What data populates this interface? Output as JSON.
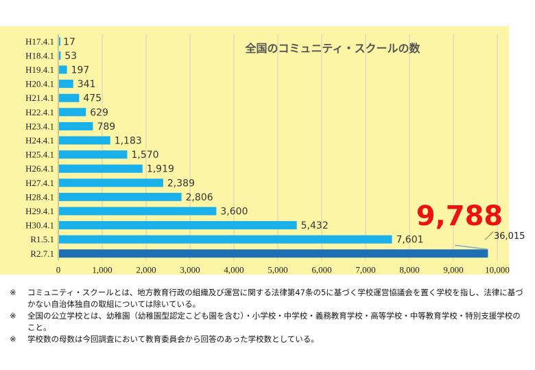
{
  "chart_data": {
    "type": "bar",
    "orientation": "horizontal",
    "title": "全国のコミュニティ・スクールの数",
    "categories": [
      "H17.4.1",
      "H18.4.1",
      "H19.4.1",
      "H20.4.1",
      "H21.4.1",
      "H22.4.1",
      "H23.4.1",
      "H24.4.1",
      "H25.4.1",
      "H26.4.1",
      "H27.4.1",
      "H28.4.1",
      "H29.4.1",
      "H30.4.1",
      "R1.5.1",
      "R2.7.1"
    ],
    "values": [
      17,
      53,
      197,
      341,
      475,
      629,
      789,
      1183,
      1570,
      1919,
      2389,
      2806,
      3600,
      5432,
      7601,
      9788
    ],
    "value_labels": [
      "17",
      "53",
      "197",
      "341",
      "475",
      "629",
      "789",
      "1,183",
      "1,570",
      "1,919",
      "2,389",
      "2,806",
      "3,600",
      "5,432",
      "7,601",
      ""
    ],
    "xlim": [
      0,
      10000
    ],
    "xticks": [
      "0",
      "1,000",
      "2,000",
      "3,000",
      "4,000",
      "5,000",
      "6,000",
      "7,000",
      "8,000",
      "9,000",
      "10,000"
    ],
    "grid": true,
    "bar_color": "#1ab0ea",
    "highlight_color": "#1f6fb5",
    "highlight": {
      "value_label": "9,788",
      "denominator_label": "／36,015",
      "color": "#ee1111"
    }
  },
  "notes": [
    {
      "mark": "※",
      "text": "コミュニティ・スクールとは、地方教育行政の組織及び運営に関する法律第47条の5に基づく学校運営協議会を置く学校を指し、法律に基づかない自治体独自の取組については除いている。"
    },
    {
      "mark": "※",
      "text": "全国の公立学校とは、幼稚園（幼稚園型認定こども園を含む）・小学校・中学校・義務教育学校・高等学校・中等教育学校・特別支援学校のこと。"
    },
    {
      "mark": "※",
      "text": "学校数の母数は今回調査において教育委員会から回答のあった学校数としている。"
    }
  ]
}
